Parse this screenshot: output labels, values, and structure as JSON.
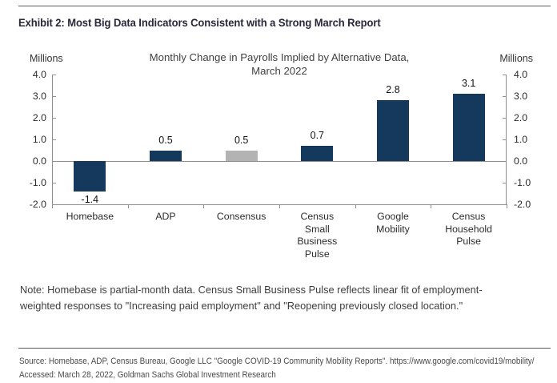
{
  "page": {
    "exhibit_title": "Exhibit 2: Most Big Data Indicators Consistent with a Strong March Report",
    "note_lines": [
      "Note: Homebase is partial-month data. Census Small Business Pulse reflects linear fit of employment-",
      "weighted responses to \"Increasing paid employment\" and \"Reopening previously closed location.\""
    ],
    "source_lines": [
      "Source: Homebase, ADP, Census Bureau, Google LLC \"Google COVID-19 Community Mobility Reports\". https://www.google.com/covid19/mobility/",
      "Accessed: March 28, 2022, Goldman Sachs Global Investment Research"
    ]
  },
  "chart_data": {
    "type": "bar",
    "title": "Monthly Change in Payrolls Implied by Alternative Data, March 2022",
    "title_lines": [
      "Monthly Change in Payrolls Implied by Alternative Data,",
      "March 2022"
    ],
    "unit_label_left": "Millions",
    "unit_label_right": "Millions",
    "categories": [
      "Homebase",
      "ADP",
      "Consensus",
      "Census Small Business Pulse",
      "Google Mobility",
      "Census Household Pulse"
    ],
    "category_label_lines": [
      [
        "Homebase"
      ],
      [
        "ADP"
      ],
      [
        "Consensus"
      ],
      [
        "Census",
        "Small",
        "Business",
        "Pulse"
      ],
      [
        "Google",
        "Mobility"
      ],
      [
        "Census",
        "Household",
        "Pulse"
      ]
    ],
    "values": [
      -1.4,
      0.5,
      0.5,
      0.7,
      2.8,
      3.1
    ],
    "data_labels": [
      "-1.4",
      "0.5",
      "0.5",
      "0.7",
      "2.8",
      "3.1"
    ],
    "bar_colors": [
      "#14395c",
      "#14395c",
      "#b3b3b3",
      "#14395c",
      "#14395c",
      "#14395c"
    ],
    "ylim": [
      -2.0,
      4.0
    ],
    "ytick_step": 1.0,
    "ytick_labels": [
      "4.0",
      "3.0",
      "2.0",
      "1.0",
      "0.0",
      "-1.0",
      "-2.0"
    ],
    "grid": false,
    "zero_line": true,
    "legend": null
  },
  "colors": {
    "bar_navy": "#14395c",
    "bar_gray": "#b3b3b3",
    "axis": "#8f8f8f",
    "rule": "#595959",
    "exhibit_title_text": "#28283a",
    "chart_title_text": "#404040",
    "tick_text": "#2b2b2b",
    "note_text": "#3d3d3d",
    "source_text": "#4a4a4a"
  }
}
